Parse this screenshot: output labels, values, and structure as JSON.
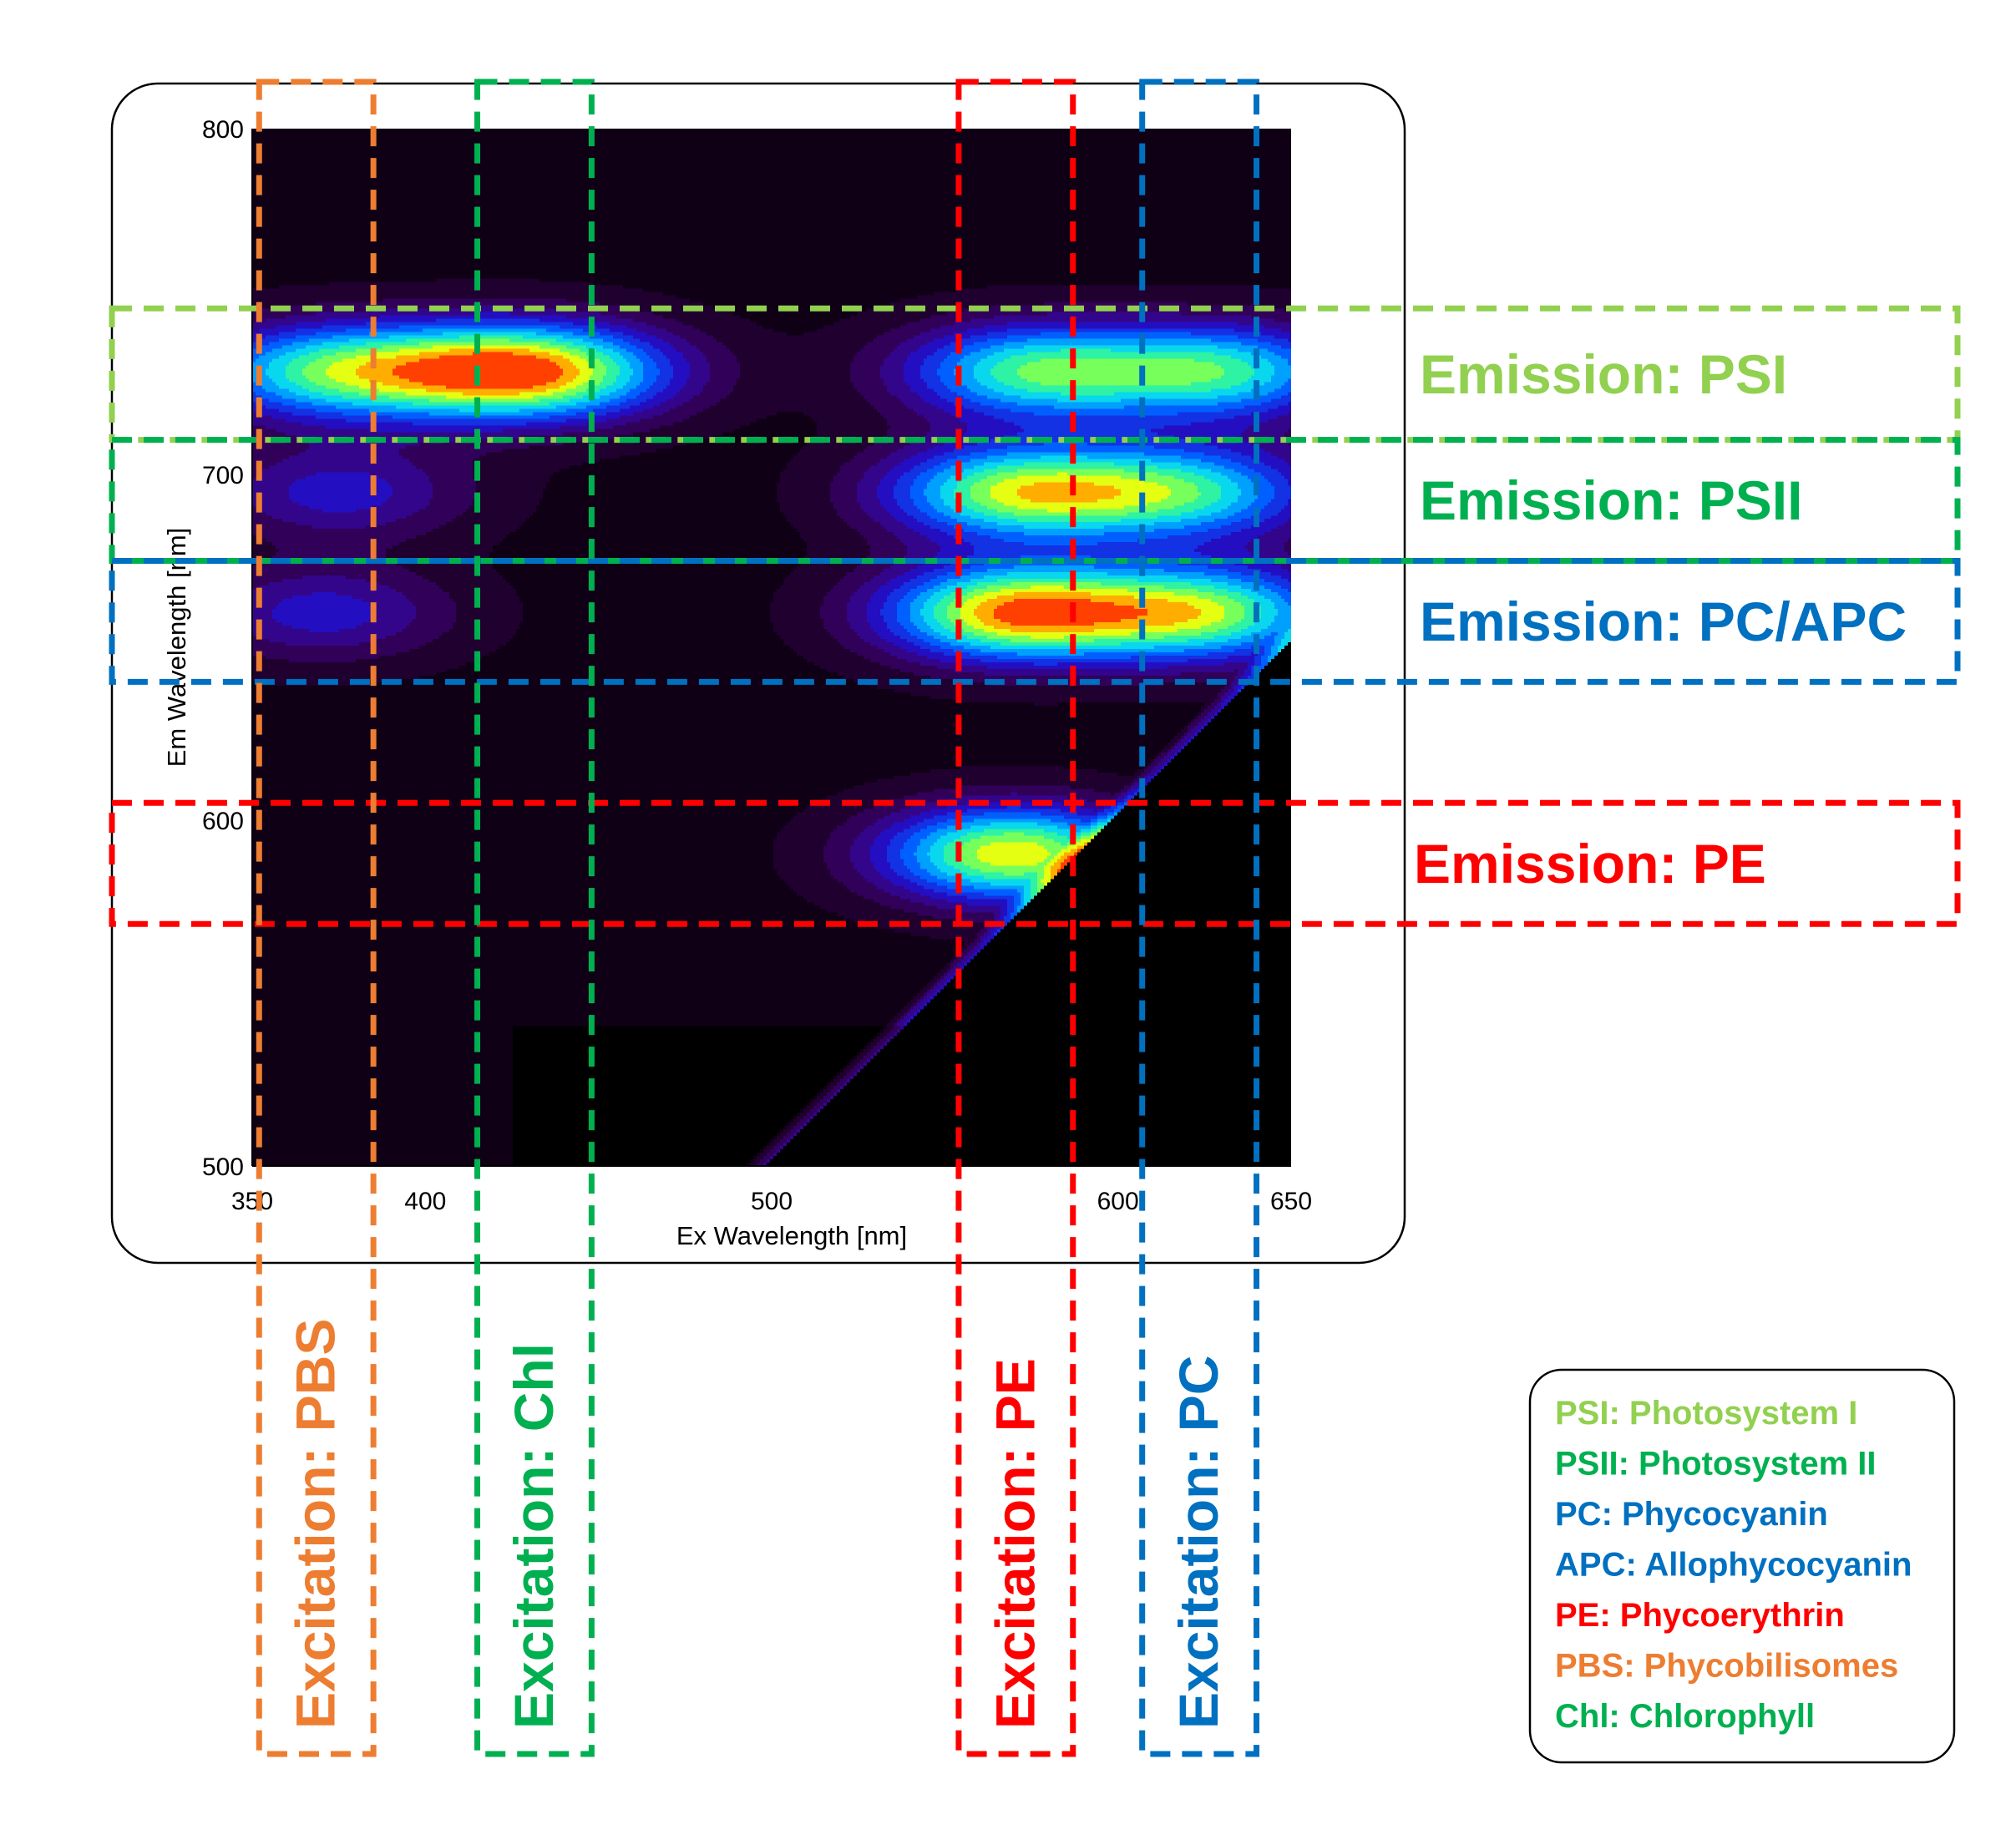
{
  "colors": {
    "psi": "#92D050",
    "psii": "#00B050",
    "pc": "#0070C0",
    "pe": "#FF0000",
    "pbs": "#ED7D31",
    "chl": "#00B050"
  },
  "chart_data": {
    "type": "heatmap",
    "xlabel": "Ex Wavelength [nm]",
    "ylabel": "Em Wavelength [nm]",
    "xlim": [
      350,
      650
    ],
    "ylim": [
      500,
      800
    ],
    "x_ticks": [
      "350",
      "400",
      "500",
      "600",
      "650"
    ],
    "y_ticks": [
      "500",
      "600",
      "700",
      "800"
    ],
    "colormap": [
      "#000000",
      "#1a0024",
      "#3a006e",
      "#2010d0",
      "#0060ff",
      "#00d0ff",
      "#40ff80",
      "#ffff00",
      "#ff4000"
    ],
    "peaks": [
      {
        "ex": 370,
        "em": 730,
        "intensity": 0.58
      },
      {
        "ex": 415,
        "em": 730,
        "intensity": 0.55
      },
      {
        "ex": 440,
        "em": 730,
        "intensity": 0.5
      },
      {
        "ex": 375,
        "em": 695,
        "intensity": 0.28
      },
      {
        "ex": 370,
        "em": 660,
        "intensity": 0.28
      },
      {
        "ex": 575,
        "em": 730,
        "intensity": 0.62
      },
      {
        "ex": 630,
        "em": 730,
        "intensity": 0.6
      },
      {
        "ex": 570,
        "em": 695,
        "intensity": 0.7
      },
      {
        "ex": 620,
        "em": 695,
        "intensity": 0.58
      },
      {
        "ex": 570,
        "em": 660,
        "intensity": 0.85
      },
      {
        "ex": 625,
        "em": 660,
        "intensity": 0.7
      },
      {
        "ex": 570,
        "em": 590,
        "intensity": 0.8
      }
    ],
    "emission_bands": [
      {
        "label": "Emission: PSI",
        "em_range": [
          710,
          748
        ],
        "color": "#92D050"
      },
      {
        "label": "Emission: PSII",
        "em_range": [
          675,
          710
        ],
        "color": "#00B050"
      },
      {
        "label": "Emission: PC/APC",
        "em_range": [
          640,
          675
        ],
        "color": "#0070C0"
      },
      {
        "label": "Emission: PE",
        "em_range": [
          570,
          605
        ],
        "color": "#FF0000"
      }
    ],
    "excitation_bands": [
      {
        "label": "Excitation: PBS",
        "ex_range": [
          352,
          385
        ],
        "color": "#ED7D31"
      },
      {
        "label": "Excitation: Chl",
        "ex_range": [
          415,
          448
        ],
        "color": "#00B050"
      },
      {
        "label": "Excitation: PE",
        "ex_range": [
          554,
          587
        ],
        "color": "#FF0000"
      },
      {
        "label": "Excitation: PC",
        "ex_range": [
          607,
          640
        ],
        "color": "#0070C0"
      }
    ]
  },
  "legend": [
    {
      "text": "PSI: Photosystem I",
      "color": "#92D050"
    },
    {
      "text": "PSII: Photosystem II",
      "color": "#00B050"
    },
    {
      "text": "PC: Phycocyanin",
      "color": "#0070C0"
    },
    {
      "text": "APC: Allophycocyanin",
      "color": "#0070C0"
    },
    {
      "text": "PE: Phycoerythrin",
      "color": "#FF0000"
    },
    {
      "text": "PBS: Phycobilisomes",
      "color": "#ED7D31"
    },
    {
      "text": "Chl: Chlorophyll",
      "color": "#00B050"
    }
  ]
}
